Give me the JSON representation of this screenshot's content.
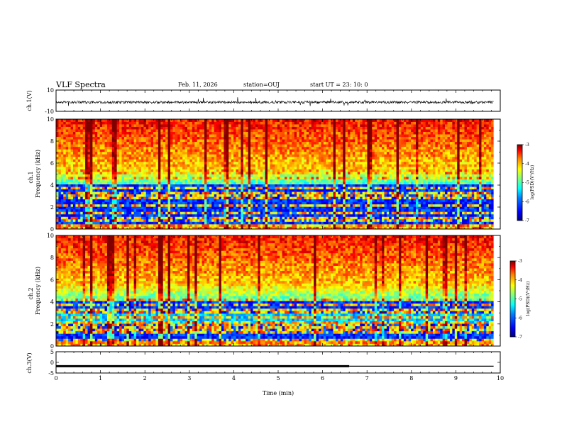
{
  "header": {
    "title": "VLF Spectra",
    "date": "Feb. 11, 2026",
    "station": "station=OUJ",
    "start": "start  UT =   23: 10: 0"
  },
  "chart_data": [
    {
      "type": "line",
      "panel": "ch1-waveform",
      "ylabel": "ch.1(V)",
      "ylim": [
        -10,
        10
      ],
      "yticks": [
        10,
        -10
      ],
      "xlim": [
        0,
        10
      ],
      "series": [
        {
          "baseline": -1.5,
          "noise_amplitude": 1.2,
          "spike_amplitude": 5
        }
      ]
    },
    {
      "type": "heatmap",
      "panel": "ch1-spectrogram",
      "ylabel": "Frequency (kHz)",
      "channel_label": "ch.1",
      "ylim": [
        0,
        10
      ],
      "yticks": [
        0,
        2,
        4,
        6,
        8,
        10
      ],
      "xlim": [
        0,
        10
      ],
      "x_data_end": 9.85,
      "colorbar": {
        "label": "log(PSD)(V²/Hz)",
        "range": [
          -7,
          -3
        ],
        "ticks": [
          -3,
          -4,
          -5,
          -6,
          -7
        ]
      }
    },
    {
      "type": "heatmap",
      "panel": "ch2-spectrogram",
      "ylabel": "Frequency (kHz)",
      "channel_label": "ch.2",
      "ylim": [
        0,
        10
      ],
      "yticks": [
        0,
        2,
        4,
        6,
        8,
        10
      ],
      "xlim": [
        0,
        10
      ],
      "x_data_end": 9.85,
      "colorbar": {
        "label": "log(PSD)(V²/Hz)",
        "range": [
          -7,
          -3
        ],
        "ticks": [
          -3,
          -4,
          -5,
          -6,
          -7
        ]
      }
    },
    {
      "type": "line",
      "panel": "ch3-waveform",
      "ylabel": "ch.3(V)",
      "ylim": [
        -5,
        5
      ],
      "yticks": [
        5,
        0,
        -5
      ],
      "xlim": [
        0,
        10
      ],
      "xlabel": "Time (min)",
      "xticks": [
        0,
        1,
        2,
        3,
        4,
        5,
        6,
        7,
        8,
        9,
        10
      ],
      "series": [
        {
          "level": -1.8,
          "thick_until": 6.6
        }
      ]
    }
  ],
  "colors": {
    "colormap": [
      "#000080",
      "#0000ff",
      "#0080ff",
      "#00ffff",
      "#80ff80",
      "#ffff00",
      "#ff8000",
      "#ff0000",
      "#800000"
    ],
    "axes": "#000000",
    "background": "#ffffff"
  }
}
